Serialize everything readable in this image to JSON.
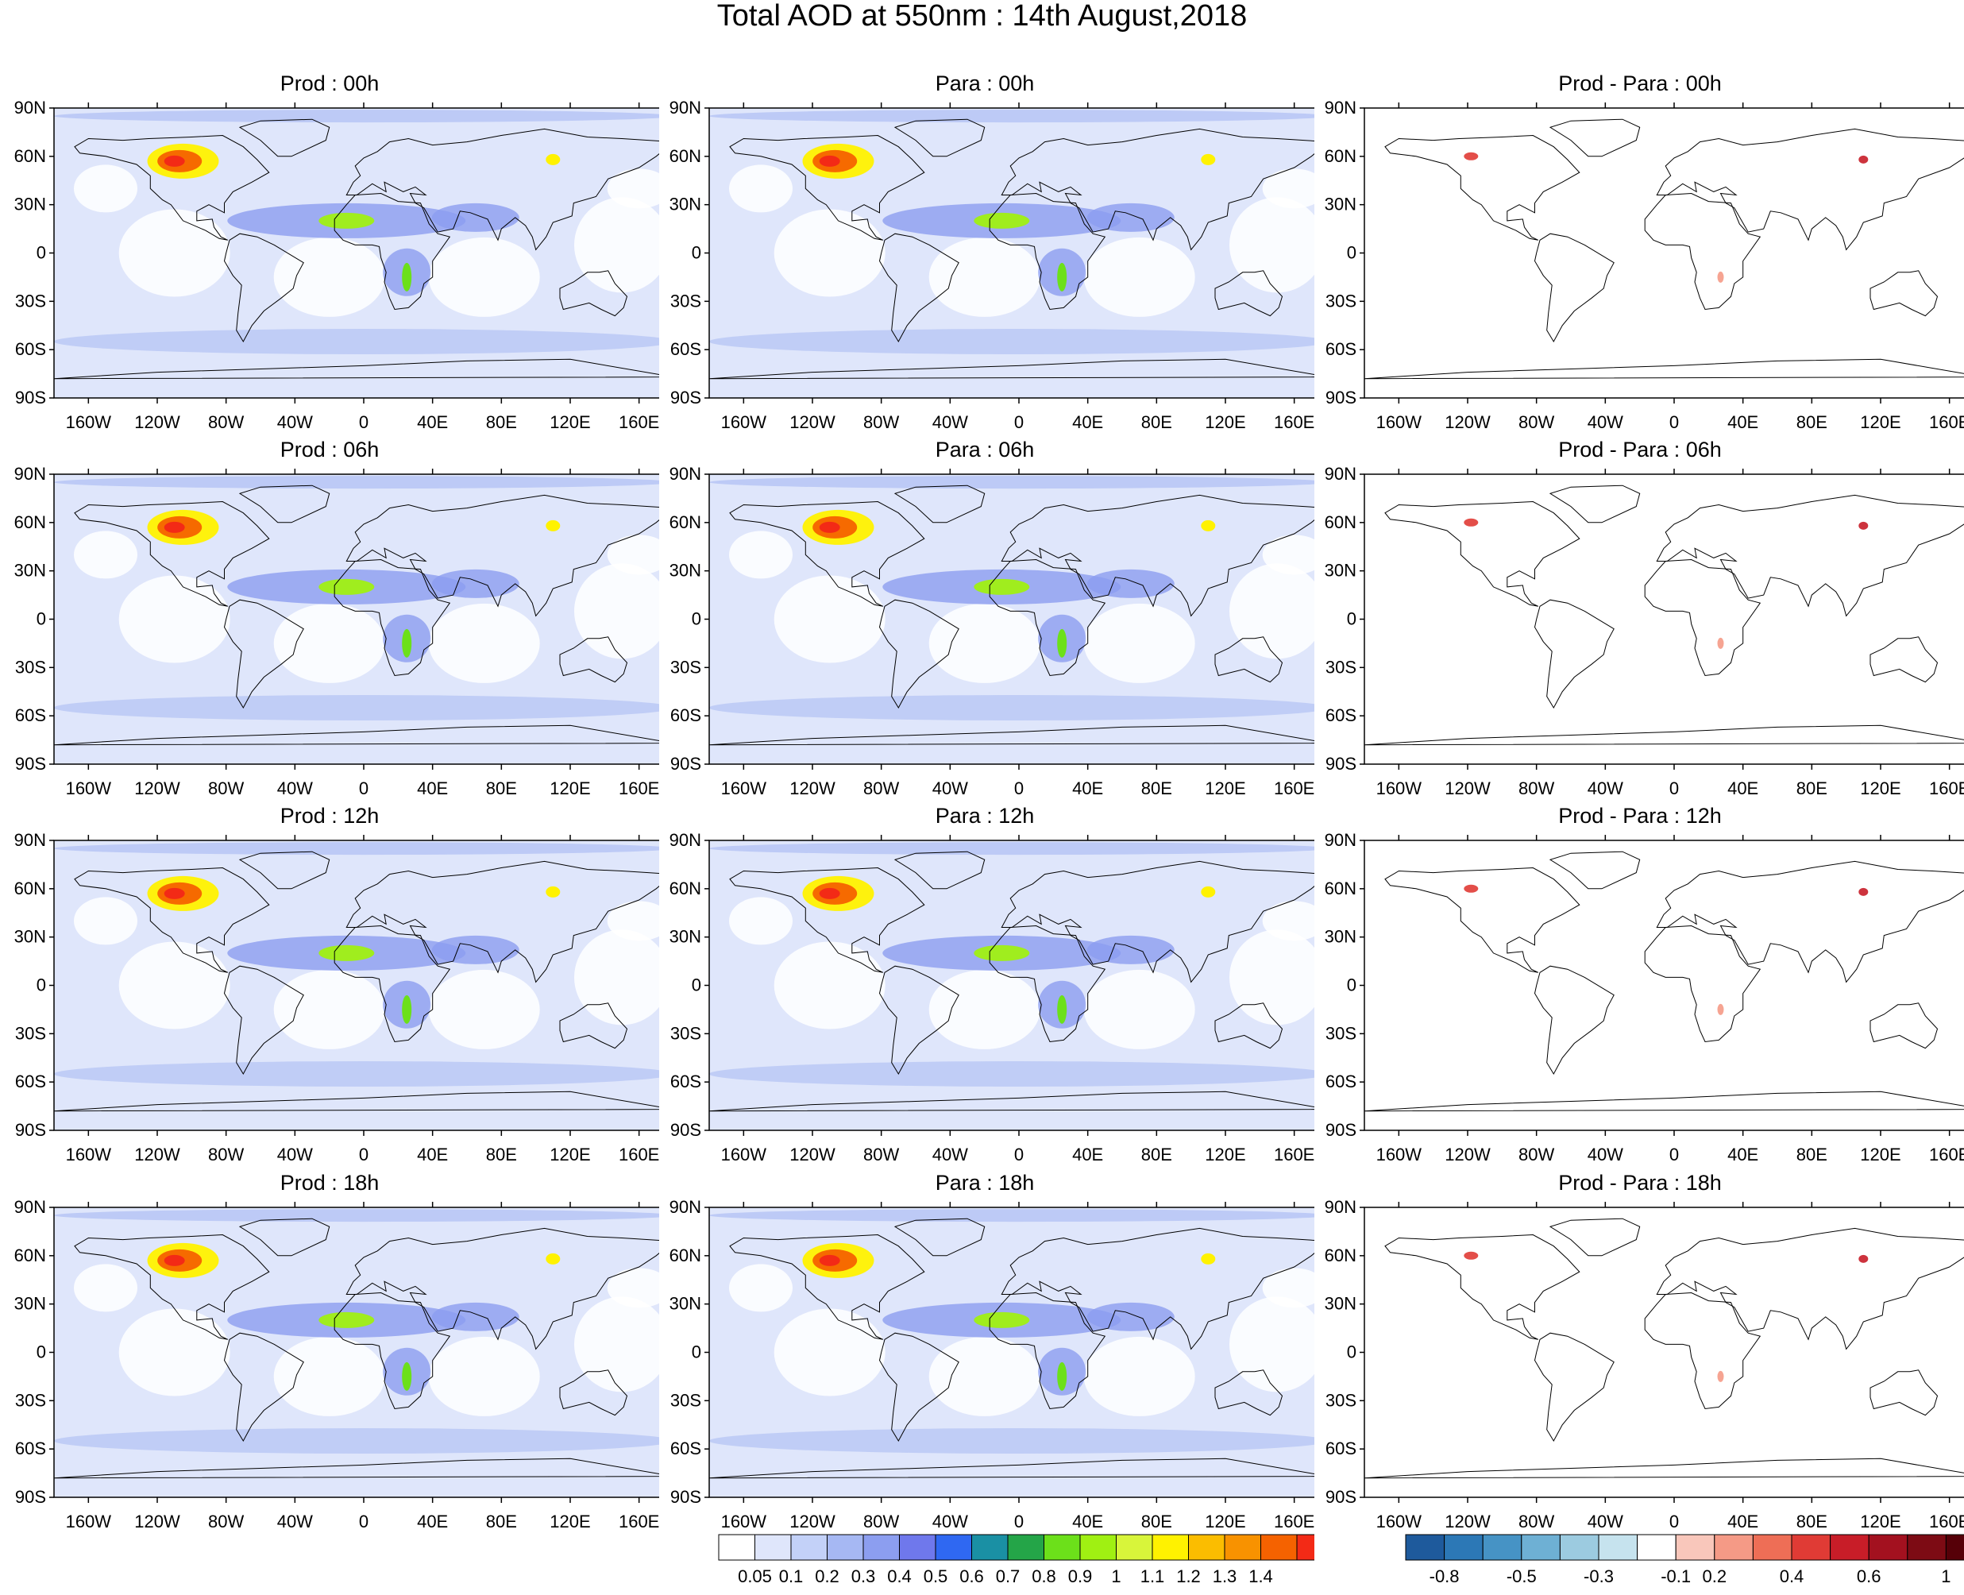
{
  "title": "Total AOD at 550nm : 14th August,2018",
  "lat_labels": [
    "90N",
    "60N",
    "30N",
    "0",
    "30S",
    "60S",
    "90S"
  ],
  "lon_labels": [
    "160W",
    "120W",
    "80W",
    "40W",
    "0",
    "40E",
    "80E",
    "120E",
    "160E"
  ],
  "panels": [
    {
      "title": "Prod : 00h",
      "type": "aod"
    },
    {
      "title": "Para : 00h",
      "type": "aod"
    },
    {
      "title": "Prod - Para : 00h",
      "type": "diff"
    },
    {
      "title": "Prod : 06h",
      "type": "aod"
    },
    {
      "title": "Para : 06h",
      "type": "aod"
    },
    {
      "title": "Prod - Para : 06h",
      "type": "diff"
    },
    {
      "title": "Prod : 12h",
      "type": "aod"
    },
    {
      "title": "Para : 12h",
      "type": "aod"
    },
    {
      "title": "Prod - Para : 12h",
      "type": "diff"
    },
    {
      "title": "Prod : 18h",
      "type": "aod"
    },
    {
      "title": "Para : 18h",
      "type": "aod"
    },
    {
      "title": "Prod - Para : 18h",
      "type": "diff"
    }
  ],
  "aod_colorbar": {
    "labels": [
      "0.05",
      "0.1",
      "0.2",
      "0.3",
      "0.4",
      "0.5",
      "0.6",
      "0.7",
      "0.8",
      "0.9",
      "1",
      "1.1",
      "1.2",
      "1.3",
      "1.4"
    ],
    "colors": [
      "#ffffff",
      "#dfe6fb",
      "#c3d1f8",
      "#a6b8f3",
      "#8c9ef0",
      "#6f78ec",
      "#2f68f2",
      "#1a90a4",
      "#24a548",
      "#6ce01a",
      "#a0f012",
      "#d8f53a",
      "#fff200",
      "#fbbd00",
      "#f89200",
      "#f56200"
    ],
    "top_color": "#f32a16"
  },
  "diff_colorbar": {
    "labels": [
      "-0.8",
      "-0.5",
      "-0.3",
      "-0.1",
      "0.2",
      "0.4",
      "0.6",
      "1"
    ],
    "colors": [
      "#1e5a9c",
      "#2c78b6",
      "#4693c5",
      "#6eb0d4",
      "#9ccbe0",
      "#c6e3ee",
      "#ffffff",
      "#f9c7bb",
      "#f59a86",
      "#ee6e56",
      "#e03b35",
      "#c81d28",
      "#a3111f",
      "#7d0b14",
      "#560008"
    ]
  }
}
